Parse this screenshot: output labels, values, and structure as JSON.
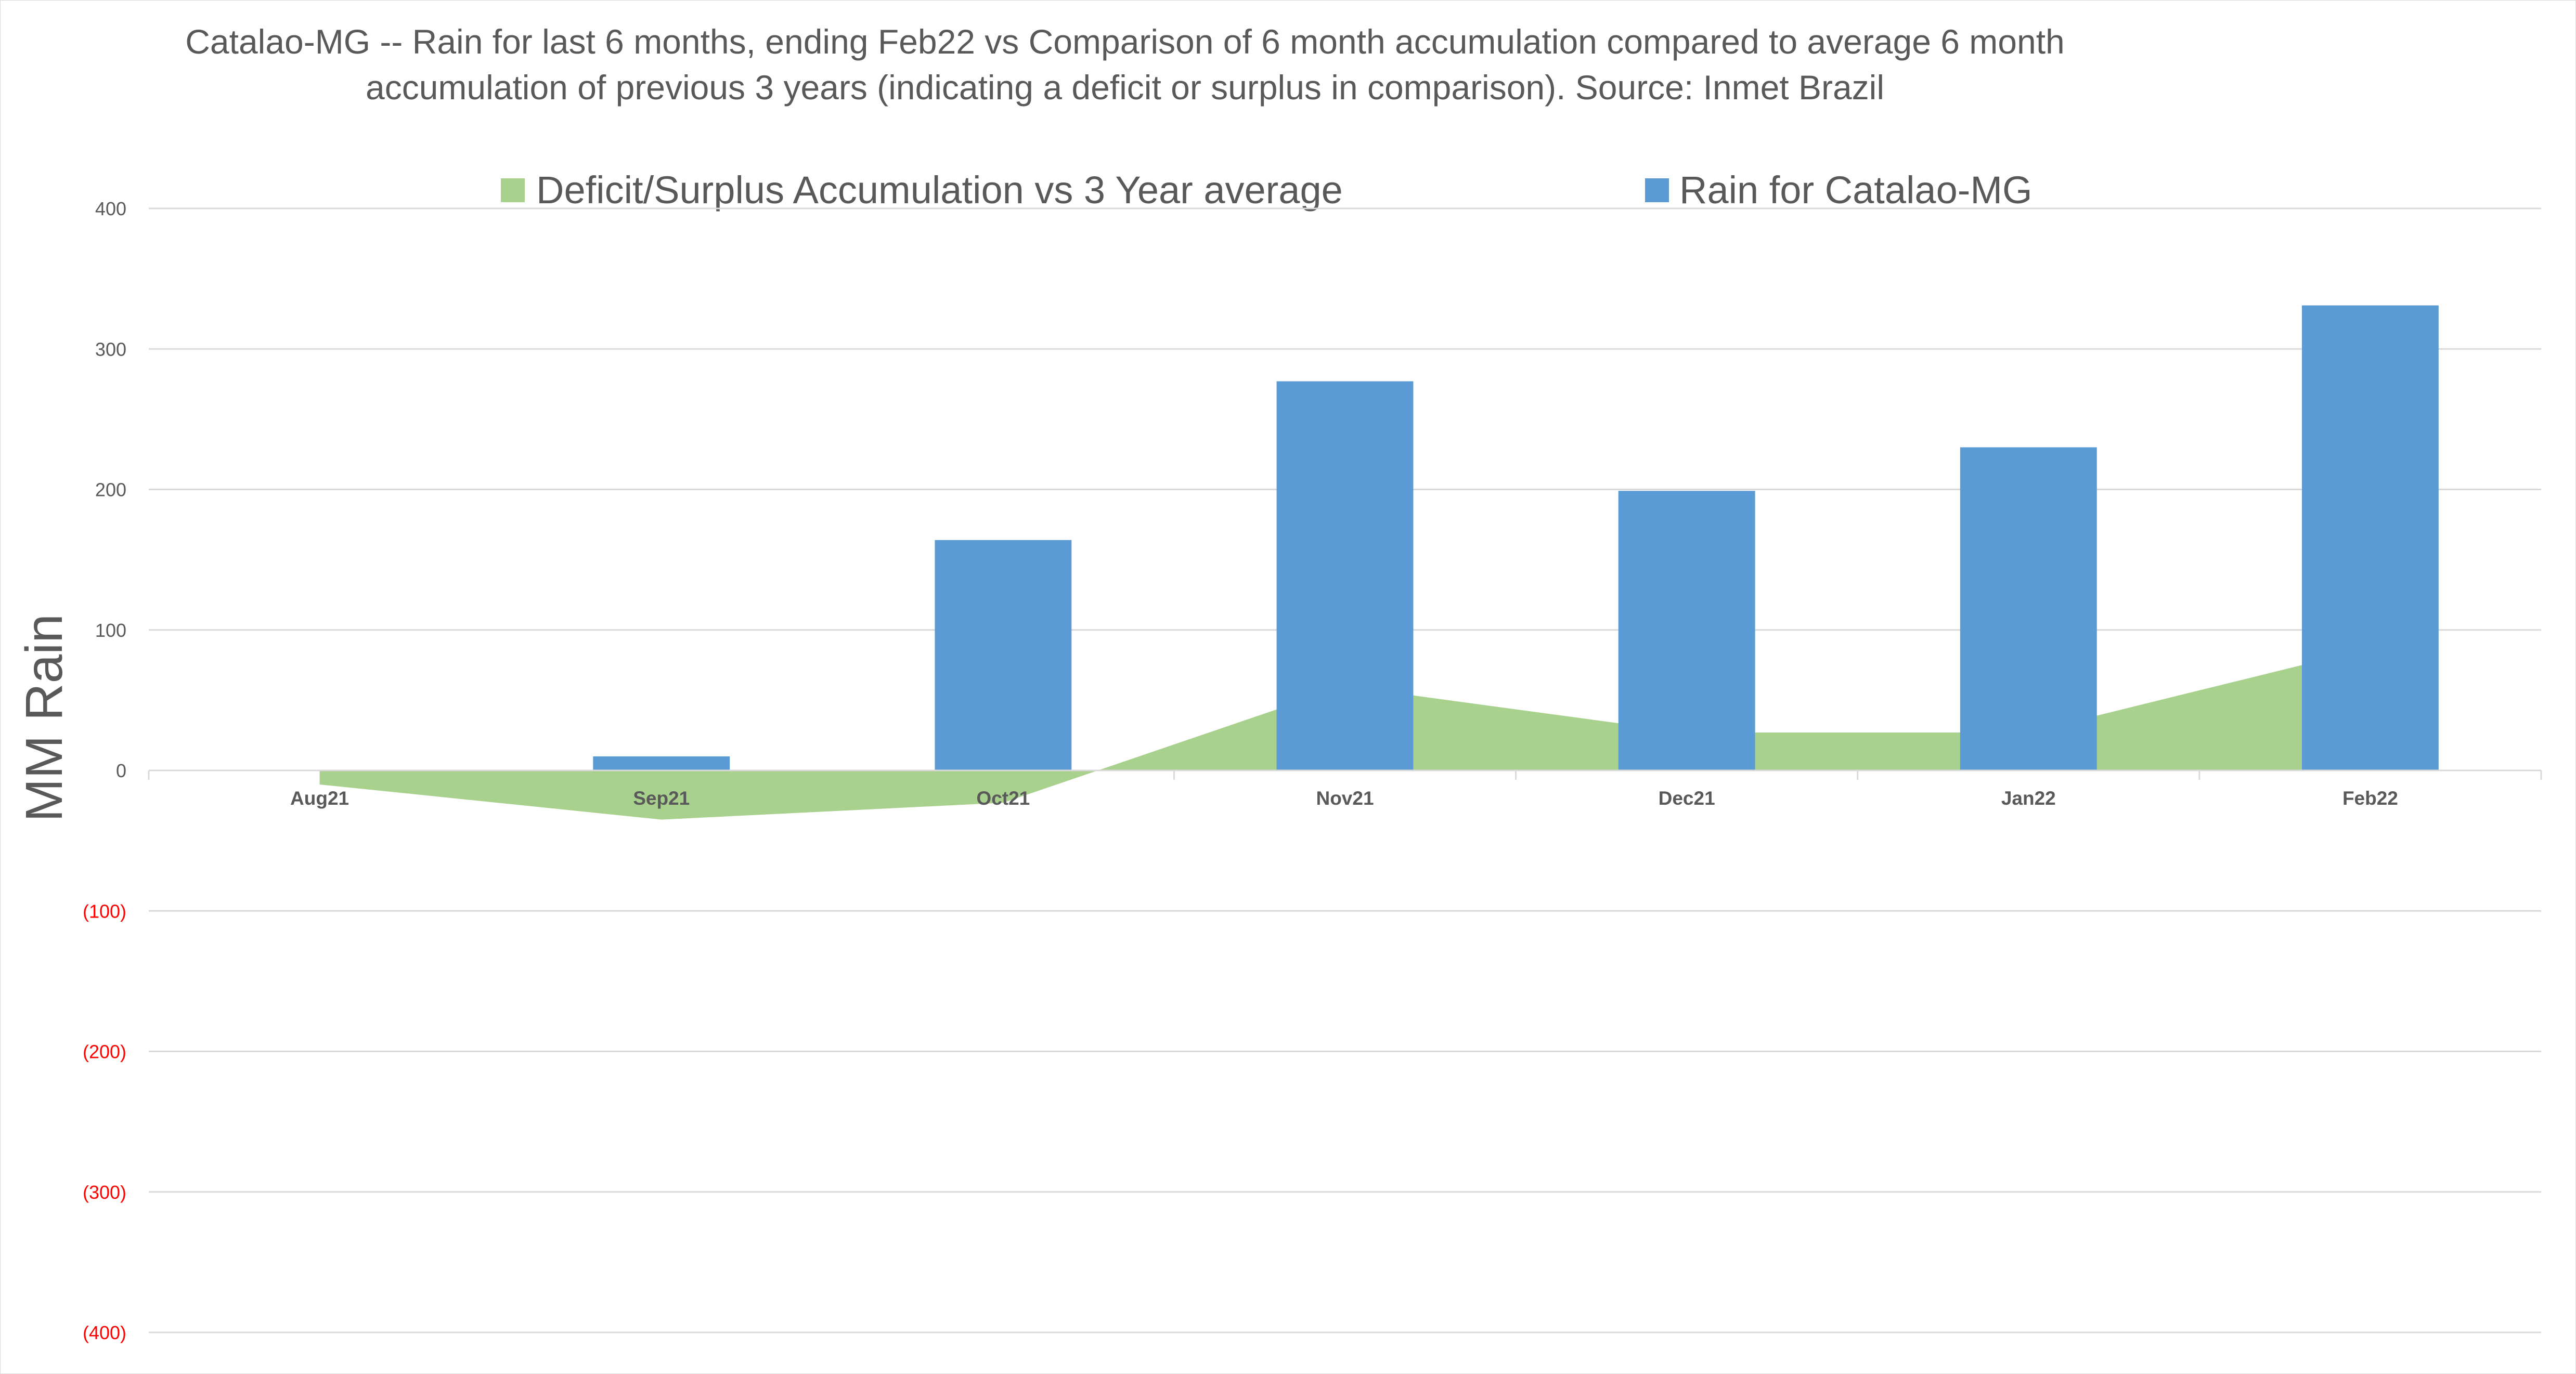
{
  "chart_data": {
    "type": "bar",
    "title": "Catalao-MG -- Rain for last 6 months, ending Feb22  vs Comparison of 6 month accumulation compared to average 6 month accumulation of previous 3 years  (indicating a deficit or surplus in comparison). Source: Inmet Brazil",
    "title_lines": [
      "Catalao-MG -- Rain for last 6 months, ending Feb22  vs Comparison of 6 month accumulation compared to average 6 month",
      "accumulation of previous 3 years  (indicating a deficit or surplus in comparison). Source: Inmet Brazil"
    ],
    "xlabel": "",
    "ylabel": "MM Rain",
    "categories": [
      "Aug21",
      "Sep21",
      "Oct21",
      "Nov21",
      "Dec21",
      "Jan22",
      "Feb22"
    ],
    "ylim": [
      -400,
      400
    ],
    "yticks": [
      {
        "value": 400,
        "label": "400"
      },
      {
        "value": 300,
        "label": "300"
      },
      {
        "value": 200,
        "label": "200"
      },
      {
        "value": 100,
        "label": "100"
      },
      {
        "value": 0,
        "label": "0"
      },
      {
        "value": -100,
        "label": "(100)"
      },
      {
        "value": -200,
        "label": "(200)"
      },
      {
        "value": -300,
        "label": "(300)"
      },
      {
        "value": -400,
        "label": "(400)"
      }
    ],
    "grid": true,
    "legend_position": "top",
    "series": [
      {
        "name": "Deficit/Surplus Accumulation vs 3 Year average",
        "type": "area",
        "color": "#a9d18e",
        "values": [
          -10,
          -35,
          -23,
          60,
          27,
          27,
          87
        ]
      },
      {
        "name": "Rain for Catalao-MG",
        "type": "bar",
        "color": "#5b9bd5",
        "values": [
          0,
          10,
          164,
          277,
          199,
          230,
          331
        ]
      }
    ],
    "colors": {
      "gridline": "#d9d9d9",
      "text": "#595959",
      "negative_tick": "#ff0000"
    }
  }
}
